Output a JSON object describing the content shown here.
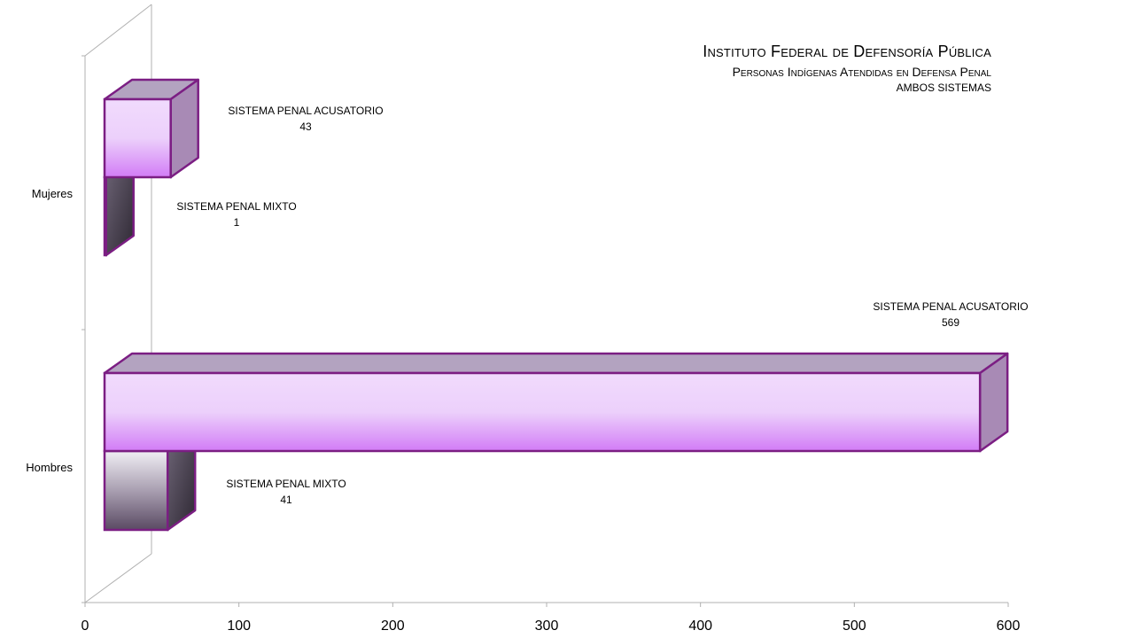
{
  "title": {
    "line1": "Instituto Federal de Defensoría Pública",
    "line2": "Personas  Indígenas  Atendidas en Defensa Penal",
    "line3": "AMBOS SISTEMAS"
  },
  "chart_data": {
    "type": "bar",
    "orientation": "horizontal",
    "three_d": true,
    "categories": [
      "Mujeres",
      "Hombres"
    ],
    "series": [
      {
        "name": "SISTEMA PENAL ACUSATORIO",
        "values": [
          43,
          569
        ]
      },
      {
        "name": "SISTEMA PENAL MIXTO",
        "values": [
          1,
          41
        ]
      }
    ],
    "xticks": [
      0,
      100,
      200,
      300,
      400,
      500,
      600
    ],
    "xlim": [
      0,
      600
    ],
    "legend": "none",
    "grid": false,
    "colors": {
      "acusatorio_front_top": "#f1dbfd",
      "acusatorio_front_bottom": "#d27cf6",
      "acusatorio_top": "#b3a3c0",
      "acusatorio_side": "#a88ab5",
      "mixto_front_top": "#f0eef4",
      "mixto_front_bottom": "#5a4a63",
      "mixto_top": "#8b8393",
      "mixto_side": "#3b3340",
      "outline": "#7b1e83"
    }
  }
}
